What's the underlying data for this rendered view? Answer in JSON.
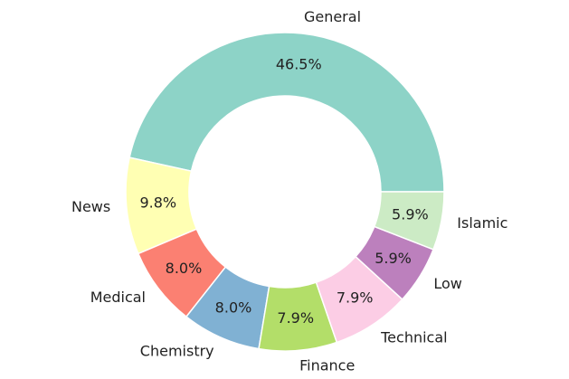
{
  "chart_data": {
    "type": "donut",
    "categories": [
      "General",
      "News",
      "Medical",
      "Chemistry",
      "Finance",
      "Technical",
      "Low",
      "Islamic"
    ],
    "values": [
      46.5,
      9.8,
      8.0,
      8.0,
      7.9,
      7.9,
      5.9,
      5.9
    ],
    "value_labels": [
      "46.5%",
      "9.8%",
      "8.0%",
      "8.0%",
      "7.9%",
      "7.9%",
      "5.9%",
      "5.9%"
    ],
    "colors": [
      "#8dd3c7",
      "#ffffb3",
      "#fb8072",
      "#80b1d3",
      "#b3de69",
      "#fccde5",
      "#bc80bd",
      "#ccebc5"
    ]
  }
}
